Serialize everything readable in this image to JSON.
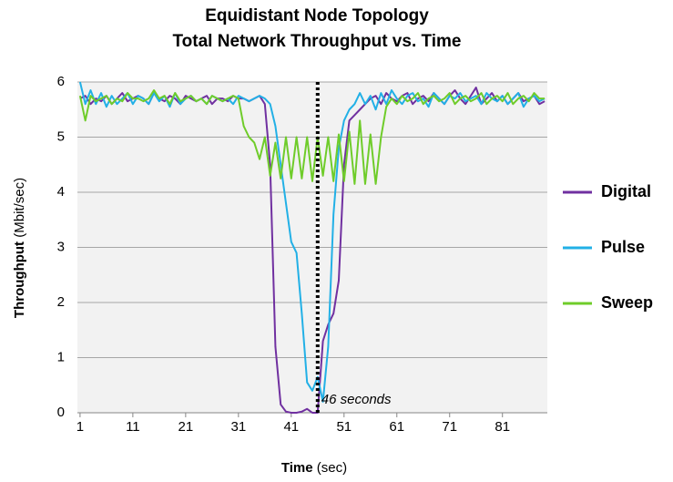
{
  "chart_data": {
    "type": "line",
    "title": [
      "Equidistant Node Topology",
      "Total Network Throughput vs. Time"
    ],
    "xlabel": [
      "Time",
      "(sec)"
    ],
    "ylabel": [
      "Throughput",
      "(Mbit/sec)"
    ],
    "x": [
      1,
      2,
      3,
      4,
      5,
      6,
      7,
      8,
      9,
      10,
      11,
      12,
      13,
      14,
      15,
      16,
      17,
      18,
      19,
      20,
      21,
      22,
      23,
      24,
      25,
      26,
      27,
      28,
      29,
      30,
      31,
      32,
      33,
      34,
      35,
      36,
      37,
      38,
      39,
      40,
      41,
      42,
      43,
      44,
      45,
      46,
      47,
      48,
      49,
      50,
      51,
      52,
      53,
      54,
      55,
      56,
      57,
      58,
      59,
      60,
      61,
      62,
      63,
      64,
      65,
      66,
      67,
      68,
      69,
      70,
      71,
      72,
      73,
      74,
      75,
      76,
      77,
      78,
      79,
      80,
      81,
      82,
      83,
      84,
      85,
      86,
      87,
      88,
      89
    ],
    "xlim": [
      0.5,
      89.5
    ],
    "xticks": [
      1,
      11,
      21,
      31,
      41,
      51,
      61,
      71,
      81
    ],
    "ylim": [
      0,
      6
    ],
    "yticks": [
      0,
      1,
      2,
      3,
      4,
      5,
      6
    ],
    "grid": true,
    "legend": "right",
    "series": [
      {
        "name": "Digital",
        "color": "#7030a0",
        "values": [
          5.7,
          5.75,
          5.6,
          5.7,
          5.65,
          5.75,
          5.6,
          5.7,
          5.8,
          5.65,
          5.7,
          5.75,
          5.7,
          5.6,
          5.8,
          5.7,
          5.65,
          5.75,
          5.7,
          5.6,
          5.75,
          5.7,
          5.65,
          5.7,
          5.75,
          5.6,
          5.7,
          5.7,
          5.65,
          5.75,
          5.7,
          5.7,
          5.65,
          5.7,
          5.75,
          5.6,
          4.5,
          1.2,
          0.15,
          0.02,
          0,
          0,
          0.02,
          0.07,
          0,
          0,
          1.3,
          1.6,
          1.8,
          2.4,
          4.5,
          5.3,
          5.4,
          5.5,
          5.6,
          5.7,
          5.75,
          5.6,
          5.8,
          5.7,
          5.65,
          5.75,
          5.8,
          5.6,
          5.7,
          5.75,
          5.65,
          5.8,
          5.7,
          5.6,
          5.75,
          5.85,
          5.7,
          5.6,
          5.75,
          5.9,
          5.6,
          5.7,
          5.8,
          5.65,
          5.75,
          5.6,
          5.7,
          5.8,
          5.65,
          5.7,
          5.75,
          5.6,
          5.65
        ]
      },
      {
        "name": "Pulse",
        "color": "#22b0e6",
        "values": [
          6.0,
          5.6,
          5.85,
          5.6,
          5.8,
          5.55,
          5.75,
          5.6,
          5.7,
          5.8,
          5.6,
          5.75,
          5.7,
          5.6,
          5.8,
          5.65,
          5.75,
          5.55,
          5.8,
          5.6,
          5.7,
          5.75,
          5.65,
          5.7,
          5.6,
          5.75,
          5.7,
          5.65,
          5.7,
          5.6,
          5.75,
          5.7,
          5.65,
          5.7,
          5.75,
          5.7,
          5.6,
          5.2,
          4.5,
          3.8,
          3.1,
          2.9,
          1.8,
          0.55,
          0.4,
          0.65,
          0.2,
          1.2,
          3.6,
          4.8,
          5.3,
          5.5,
          5.6,
          5.8,
          5.6,
          5.75,
          5.5,
          5.8,
          5.6,
          5.85,
          5.7,
          5.6,
          5.75,
          5.8,
          5.65,
          5.7,
          5.55,
          5.8,
          5.7,
          5.6,
          5.75,
          5.7,
          5.8,
          5.65,
          5.7,
          5.75,
          5.6,
          5.8,
          5.7,
          5.65,
          5.75,
          5.6,
          5.7,
          5.8,
          5.55,
          5.7,
          5.75,
          5.65,
          5.7
        ]
      },
      {
        "name": "Sweep",
        "color": "#6fcc2a",
        "values": [
          5.75,
          5.3,
          5.75,
          5.65,
          5.7,
          5.75,
          5.6,
          5.7,
          5.65,
          5.8,
          5.7,
          5.7,
          5.65,
          5.7,
          5.85,
          5.7,
          5.75,
          5.6,
          5.8,
          5.65,
          5.7,
          5.75,
          5.65,
          5.7,
          5.6,
          5.75,
          5.7,
          5.65,
          5.7,
          5.75,
          5.7,
          5.2,
          5.0,
          4.9,
          4.6,
          5.0,
          4.3,
          4.9,
          4.25,
          5.0,
          4.25,
          5.0,
          4.25,
          5.0,
          4.2,
          5.0,
          4.3,
          5.0,
          4.2,
          5.05,
          4.2,
          5.1,
          4.15,
          5.3,
          4.15,
          5.05,
          4.15,
          5.0,
          5.55,
          5.7,
          5.6,
          5.75,
          5.65,
          5.7,
          5.8,
          5.6,
          5.7,
          5.75,
          5.65,
          5.7,
          5.8,
          5.6,
          5.7,
          5.75,
          5.65,
          5.7,
          5.8,
          5.6,
          5.7,
          5.75,
          5.65,
          5.8,
          5.6,
          5.7,
          5.75,
          5.65,
          5.8,
          5.7,
          5.7
        ]
      }
    ],
    "annotations": [
      {
        "x": 46,
        "text": "46 seconds"
      }
    ]
  }
}
